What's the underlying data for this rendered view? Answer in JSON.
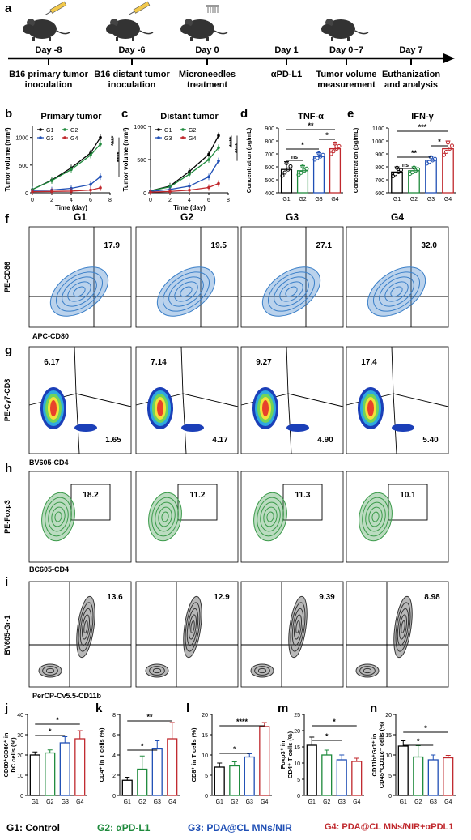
{
  "panel_letters": {
    "a": "a",
    "b": "b",
    "c": "c",
    "d": "d",
    "e": "e",
    "f": "f",
    "g": "g",
    "h": "h",
    "i": "i",
    "j": "j",
    "k": "k",
    "l": "l",
    "m": "m",
    "n": "n"
  },
  "timeline": {
    "days": [
      "Day -8",
      "Day -6",
      "Day 0",
      "Day 1",
      "Day 0~7",
      "Day 7"
    ],
    "events": [
      "B16 primary tumor\ninoculation",
      "B16 distant tumor\ninoculation",
      "Microneedles\ntreatment",
      "αPD-L1",
      "Tumor volume\nmeasurement",
      "Euthanization\nand analysis"
    ]
  },
  "groups": [
    "G1",
    "G2",
    "G3",
    "G4"
  ],
  "colors": {
    "G1": "#000000",
    "G2": "#1e8a3c",
    "G3": "#1f4fb5",
    "G4": "#c0282d",
    "flow_blue": "#3a7fc8",
    "flow_green": "#3b9a4a"
  },
  "flow": {
    "f": {
      "ylabel": "PE-CD86",
      "xlabel": "APC-CD80",
      "values": [
        "17.9",
        "19.5",
        "27.1",
        "32.0"
      ]
    },
    "g": {
      "ylabel": "PE-Cy7-CD8",
      "xlabel": "BV605-CD4",
      "top": [
        "6.17",
        "7.14",
        "9.27",
        "17.4"
      ],
      "bottom": [
        "1.65",
        "4.17",
        "4.90",
        "5.40"
      ]
    },
    "h": {
      "ylabel": "PE-Foxp3",
      "xlabel": "BC605-CD4",
      "values": [
        "18.2",
        "11.2",
        "11.3",
        "10.1"
      ]
    },
    "i": {
      "ylabel": "BV605-Gr-1",
      "xlabel": "PerCP-Cy5.5-CD11b",
      "values": [
        "13.6",
        "12.9",
        "9.39",
        "8.98"
      ]
    }
  },
  "legend": {
    "G1": "G1: Control",
    "G2": "G2: αPD-L1",
    "G3": "G3: PDA@CL MNs/NIR",
    "G4": "G4: PDA@CL MNs/NIR+αPDL1"
  },
  "chart_data": [
    {
      "panel": "b",
      "type": "line",
      "title": "Primary tumor",
      "xlabel": "Time (day)",
      "ylabel": "Tumor volume (mm³)",
      "x": [
        0,
        2,
        4,
        6,
        7
      ],
      "xlim": [
        0,
        8
      ],
      "ylim": [
        0,
        1200
      ],
      "xticks": [
        "0",
        "2",
        "4",
        "6",
        "8"
      ],
      "yticks": [
        "0",
        "500",
        "1000"
      ],
      "series": [
        {
          "name": "G1",
          "values": [
            60,
            230,
            450,
            720,
            1000
          ]
        },
        {
          "name": "G2",
          "values": [
            60,
            220,
            420,
            680,
            880
          ]
        },
        {
          "name": "G3",
          "values": [
            40,
            50,
            80,
            150,
            290
          ]
        },
        {
          "name": "G4",
          "values": [
            20,
            25,
            30,
            50,
            90
          ]
        }
      ],
      "significance": [
        "****",
        "****",
        "*"
      ]
    },
    {
      "panel": "c",
      "type": "line",
      "title": "Distant tumor",
      "xlabel": "Time (day)",
      "ylabel": "Tumor volume (mm³)",
      "x": [
        0,
        2,
        4,
        6,
        7
      ],
      "xlim": [
        0,
        8
      ],
      "ylim": [
        0,
        1000
      ],
      "xticks": [
        "0",
        "2",
        "4",
        "6",
        "8"
      ],
      "yticks": [
        "0",
        "500",
        "1000"
      ],
      "series": [
        {
          "name": "G1",
          "values": [
            30,
            100,
            320,
            580,
            860
          ]
        },
        {
          "name": "G2",
          "values": [
            30,
            90,
            280,
            500,
            680
          ]
        },
        {
          "name": "G3",
          "values": [
            20,
            50,
            100,
            240,
            480
          ]
        },
        {
          "name": "G4",
          "values": [
            10,
            20,
            40,
            80,
            140
          ]
        }
      ],
      "significance": [
        "****",
        "****",
        "**"
      ]
    },
    {
      "panel": "d",
      "type": "bar",
      "title": "TNF-α",
      "ylabel": "Concentration (pg/mL)",
      "categories": [
        "G1",
        "G2",
        "G3",
        "G4"
      ],
      "ylim": [
        400,
        900
      ],
      "yticks": [
        "400",
        "500",
        "600",
        "700",
        "800",
        "900"
      ],
      "values": [
        580,
        570,
        680,
        740
      ],
      "errors": [
        60,
        40,
        30,
        50
      ],
      "significance": [
        "ns",
        "*",
        "*",
        "**"
      ]
    },
    {
      "panel": "e",
      "type": "bar",
      "title": "IFN-γ",
      "ylabel": "Concentration (pg/mL)",
      "categories": [
        "G1",
        "G2",
        "G3",
        "G4"
      ],
      "ylim": [
        600,
        1100
      ],
      "yticks": [
        "600",
        "700",
        "800",
        "900",
        "1000",
        "1100"
      ],
      "values": [
        760,
        770,
        850,
        940
      ],
      "errors": [
        40,
        30,
        30,
        60
      ],
      "significance": [
        "ns",
        "**",
        "*",
        "***"
      ]
    },
    {
      "panel": "j",
      "type": "bar",
      "ylabel": "CD80⁺CD86⁺ in DC cells (%)",
      "categories": [
        "G1",
        "G2",
        "G3",
        "G4"
      ],
      "ylim": [
        0,
        40
      ],
      "yticks": [
        "0",
        "10",
        "20",
        "30",
        "40"
      ],
      "values": [
        20,
        21,
        26,
        28
      ],
      "errors": [
        1.5,
        1.5,
        3,
        4
      ],
      "significance": [
        "*",
        "*"
      ]
    },
    {
      "panel": "k",
      "type": "bar",
      "ylabel": "CD4⁺ in T cells (%)",
      "categories": [
        "G1",
        "G2",
        "G3",
        "G4"
      ],
      "ylim": [
        0,
        8
      ],
      "yticks": [
        "0",
        "2",
        "4",
        "6",
        "8"
      ],
      "values": [
        1.5,
        2.6,
        4.6,
        5.6
      ],
      "errors": [
        0.3,
        1.3,
        0.8,
        1.6
      ],
      "significance": [
        "*",
        "**"
      ]
    },
    {
      "panel": "l",
      "type": "bar",
      "ylabel": "CD8⁺ in T cells (%)",
      "categories": [
        "G1",
        "G2",
        "G3",
        "G4"
      ],
      "ylim": [
        0,
        20
      ],
      "yticks": [
        "0",
        "5",
        "10",
        "15",
        "20"
      ],
      "values": [
        7,
        7.3,
        9.5,
        17
      ],
      "errors": [
        1,
        1,
        0.8,
        1
      ],
      "significance": [
        "*",
        "****"
      ]
    },
    {
      "panel": "m",
      "type": "bar",
      "ylabel": "Foxp3⁺ in CD4⁺ T cells (%)",
      "categories": [
        "G1",
        "G2",
        "G3",
        "G4"
      ],
      "ylim": [
        0,
        25
      ],
      "yticks": [
        "0",
        "5",
        "10",
        "15",
        "20",
        "25"
      ],
      "values": [
        15.5,
        12.5,
        11,
        10.5
      ],
      "errors": [
        2.5,
        1.5,
        1.5,
        1
      ],
      "significance": [
        "*",
        "*"
      ]
    },
    {
      "panel": "n",
      "type": "bar",
      "ylabel": "CD11b⁺Gr1⁺ in CD45⁺CD11c⁻ cells (%)",
      "categories": [
        "G1",
        "G2",
        "G3",
        "G4"
      ],
      "ylim": [
        0,
        20
      ],
      "yticks": [
        "0",
        "5",
        "10",
        "15",
        "20"
      ],
      "values": [
        12.2,
        9.5,
        8.8,
        9.3
      ],
      "errors": [
        1.3,
        2.8,
        1.2,
        0.6
      ],
      "significance": [
        "*",
        "*"
      ]
    }
  ]
}
